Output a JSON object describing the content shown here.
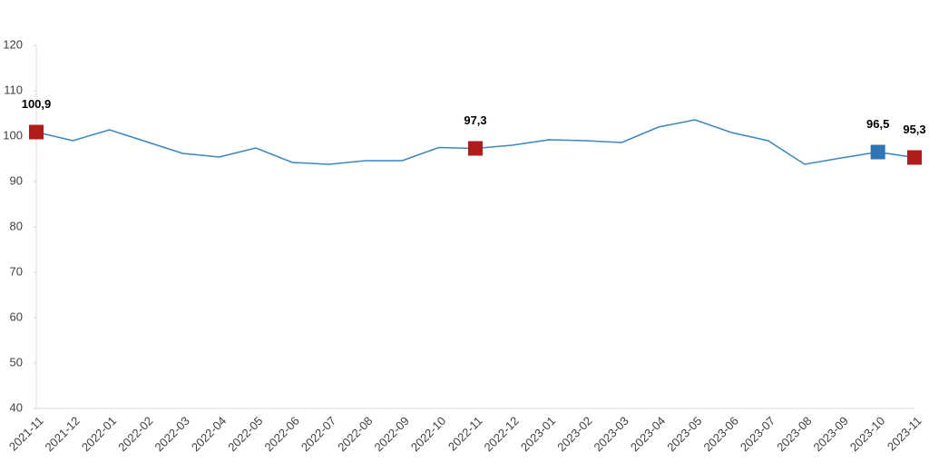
{
  "chart_data": {
    "type": "line",
    "categories": [
      "2021-11",
      "2021-12",
      "2022-01",
      "2022-02",
      "2022-03",
      "2022-04",
      "2022-05",
      "2022-06",
      "2022-07",
      "2022-08",
      "2022-09",
      "2022-10",
      "2022-11",
      "2022-12",
      "2023-01",
      "2023-02",
      "2023-03",
      "2023-04",
      "2023-05",
      "2023-06",
      "2023-07",
      "2023-08",
      "2023-09",
      "2023-10",
      "2023-11"
    ],
    "series": [
      {
        "color": "#3a86c0",
        "values": [
          100.9,
          99.0,
          101.4,
          98.8,
          96.2,
          95.4,
          97.4,
          94.2,
          93.8,
          94.6,
          94.6,
          97.5,
          97.3,
          98.0,
          99.2,
          99.0,
          98.6,
          102.0,
          103.6,
          100.8,
          99.0,
          93.8,
          95.2,
          96.5,
          95.3
        ],
        "value_labels": [
          "100,9",
          null,
          null,
          null,
          null,
          null,
          null,
          null,
          null,
          null,
          null,
          null,
          "97,3",
          null,
          null,
          null,
          null,
          null,
          null,
          null,
          null,
          null,
          null,
          "96,5",
          "95,3"
        ],
        "marker_colors": [
          "#b01c1c",
          null,
          null,
          null,
          null,
          null,
          null,
          null,
          null,
          null,
          null,
          null,
          "#b01c1c",
          null,
          null,
          null,
          null,
          null,
          null,
          null,
          null,
          null,
          null,
          "#2e75b6",
          "#b01c1c"
        ]
      }
    ],
    "ylim": [
      40,
      120
    ],
    "yticks": [
      40,
      50,
      60,
      70,
      80,
      90,
      100,
      110,
      120
    ],
    "grid": false
  }
}
